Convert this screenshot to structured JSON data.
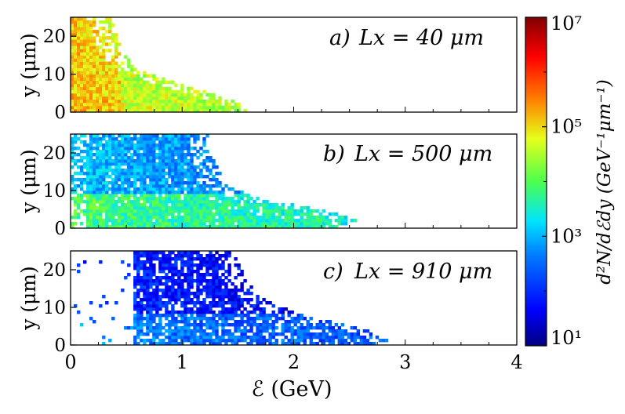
{
  "colors": {
    "frame": "#000000",
    "background": "#ffffff",
    "colormap": [
      "#000080",
      "#0000ff",
      "#0080ff",
      "#00e5ff",
      "#4dff4d",
      "#e5ff1a",
      "#ff8000",
      "#ff0000",
      "#800000"
    ]
  },
  "chart_data": [
    {
      "type": "heatmap",
      "panel": "a",
      "annotation_prefix": "a)",
      "annotation_var": "Lx = 40 μm",
      "xlabel": "",
      "ylabel": "y (μm)",
      "xlim": [
        0,
        4
      ],
      "ylim": [
        0,
        25
      ],
      "yticks": [
        "0",
        "10",
        "20"
      ],
      "xticks": [],
      "edge_profile_y": [
        0,
        2,
        5,
        8,
        12,
        18,
        25
      ],
      "edge_profile_x": [
        1.58,
        1.5,
        1.2,
        0.85,
        0.5,
        0.38,
        0.3
      ],
      "level_density_log10": 4.8
    },
    {
      "type": "heatmap",
      "panel": "b",
      "annotation_prefix": "b)",
      "annotation_var": "Lx = 500 μm",
      "xlabel": "",
      "ylabel": "y (μm)",
      "xlim": [
        0,
        4
      ],
      "ylim": [
        0,
        25
      ],
      "yticks": [
        "0",
        "10",
        "20"
      ],
      "xticks": [],
      "edge_profile_y": [
        0,
        2,
        5,
        8,
        12,
        18,
        25
      ],
      "edge_profile_x": [
        2.4,
        2.5,
        2.2,
        1.6,
        1.3,
        1.25,
        1.2
      ],
      "level_density_log10": 3.3
    },
    {
      "type": "heatmap",
      "panel": "c",
      "annotation_prefix": "c)",
      "annotation_var": "Lx = 910 μm",
      "xlabel": "ℰ (GeV)",
      "ylabel": "y (μm)",
      "xlim": [
        0,
        4
      ],
      "ylim": [
        0,
        25
      ],
      "yticks": [
        "0",
        "10",
        "20"
      ],
      "xticks": [
        "0",
        "1",
        "2",
        "3",
        "4"
      ],
      "edge_profile_y": [
        0,
        2,
        5,
        8,
        12,
        18,
        25
      ],
      "edge_profile_x": [
        2.85,
        2.8,
        2.5,
        2.0,
        1.7,
        1.5,
        1.4
      ],
      "level_density_log10": 2.4
    }
  ],
  "colorbar": {
    "label": "d²N/dℰdy (GeV⁻¹μm⁻¹)",
    "scale": "log",
    "range": [
      10,
      10000000
    ],
    "ticks": [
      "10¹",
      "10³",
      "10⁵",
      "10⁷"
    ]
  }
}
